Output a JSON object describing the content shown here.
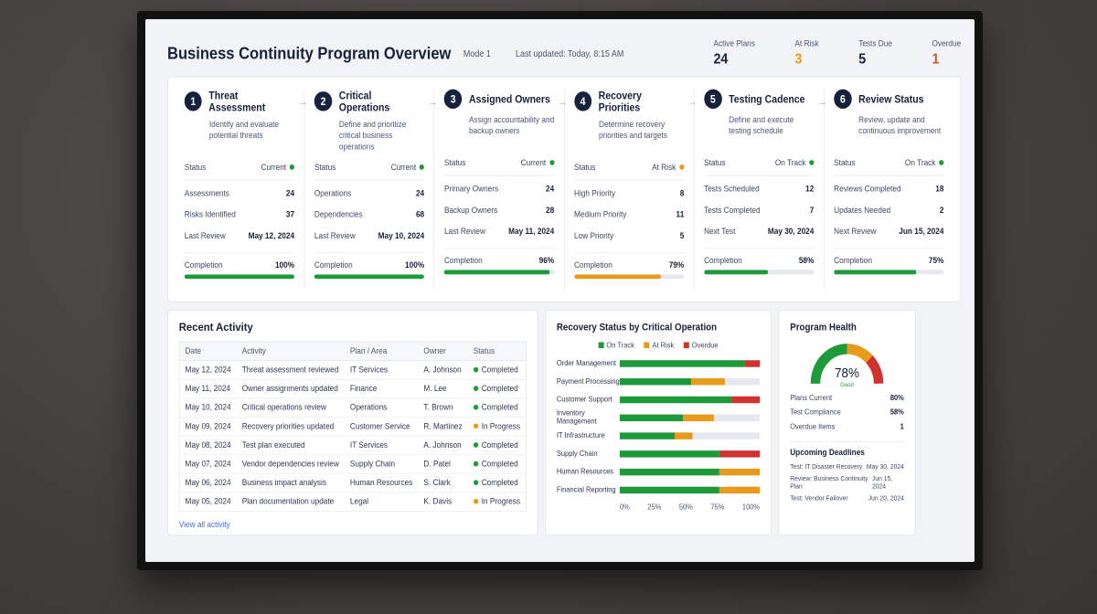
{
  "header": {
    "title": "Business Continuity Program Overview",
    "mode": "Mode 1",
    "updated": "Last updated: Today, 8:15 AM",
    "kpis": [
      {
        "label": "Active Plans",
        "value": "24",
        "tone": "normal"
      },
      {
        "label": "At Risk",
        "value": "3",
        "tone": "warn"
      },
      {
        "label": "Tests Due",
        "value": "5",
        "tone": "normal"
      },
      {
        "label": "Overdue",
        "value": "1",
        "tone": "bad"
      }
    ]
  },
  "steps": [
    {
      "num": "1",
      "title": "Threat Assessment",
      "desc": "Identify and evaluate potential threats",
      "status": "Current",
      "status_tone": "g",
      "rows": [
        {
          "k": "Assessments",
          "v": "24"
        },
        {
          "k": "Risks Identified",
          "v": "37"
        },
        {
          "k": "Last Review",
          "v": "May 12, 2024"
        }
      ],
      "completion_label": "Completion",
      "completion": "100%",
      "completion_pct": 100,
      "bar_tone": "g"
    },
    {
      "num": "2",
      "title": "Critical Operations",
      "desc": "Define and prioritize critical business operations",
      "status": "Current",
      "status_tone": "g",
      "rows": [
        {
          "k": "Operations",
          "v": "24"
        },
        {
          "k": "Dependencies",
          "v": "68"
        },
        {
          "k": "Last Review",
          "v": "May 10, 2024"
        }
      ],
      "completion_label": "Completion",
      "completion": "100%",
      "completion_pct": 100,
      "bar_tone": "g"
    },
    {
      "num": "3",
      "title": "Assigned Owners",
      "desc": "Assign accountability and backup owners",
      "status": "Current",
      "status_tone": "g",
      "rows": [
        {
          "k": "Primary Owners",
          "v": "24"
        },
        {
          "k": "Backup Owners",
          "v": "28"
        },
        {
          "k": "Last Review",
          "v": "May 11, 2024"
        }
      ],
      "completion_label": "Completion",
      "completion": "96%",
      "completion_pct": 96,
      "bar_tone": "g"
    },
    {
      "num": "4",
      "title": "Recovery Priorities",
      "desc": "Determine recovery priorities and targets",
      "status": "At Risk",
      "status_tone": "o",
      "rows": [
        {
          "k": "High Priority",
          "v": "8"
        },
        {
          "k": "Medium Priority",
          "v": "11"
        },
        {
          "k": "Low Priority",
          "v": "5"
        }
      ],
      "completion_label": "Completion",
      "completion": "79%",
      "completion_pct": 79,
      "bar_tone": "o"
    },
    {
      "num": "5",
      "title": "Testing Cadence",
      "desc": "Define and execute testing schedule",
      "status": "On Track",
      "status_tone": "g",
      "rows": [
        {
          "k": "Tests Scheduled",
          "v": "12"
        },
        {
          "k": "Tests Completed",
          "v": "7"
        },
        {
          "k": "Next Test",
          "v": "May 30, 2024"
        }
      ],
      "completion_label": "Completion",
      "completion": "58%",
      "completion_pct": 58,
      "bar_tone": "g"
    },
    {
      "num": "6",
      "title": "Review Status",
      "desc": "Review, update and continuous improvement",
      "status": "On Track",
      "status_tone": "g",
      "rows": [
        {
          "k": "Reviews Completed",
          "v": "18"
        },
        {
          "k": "Updates Needed",
          "v": "2"
        },
        {
          "k": "Next Review",
          "v": "Jun 15, 2024"
        }
      ],
      "completion_label": "Completion",
      "completion": "75%",
      "completion_pct": 75,
      "bar_tone": "g"
    }
  ],
  "status_label": "Status",
  "activity": {
    "title": "Recent Activity",
    "columns": [
      "Date",
      "Activity",
      "Plan / Area",
      "Owner",
      "Status"
    ],
    "rows": [
      {
        "date": "May 12, 2024",
        "activity": "Threat assessment reviewed",
        "area": "IT Services",
        "owner": "A. Johnson",
        "status": "Completed",
        "tone": "g"
      },
      {
        "date": "May 11, 2024",
        "activity": "Owner assignments updated",
        "area": "Finance",
        "owner": "M. Lee",
        "status": "Completed",
        "tone": "g"
      },
      {
        "date": "May 10, 2024",
        "activity": "Critical operations review",
        "area": "Operations",
        "owner": "T. Brown",
        "status": "Completed",
        "tone": "g"
      },
      {
        "date": "May 09, 2024",
        "activity": "Recovery priorities updated",
        "area": "Customer Service",
        "owner": "R. Martinez",
        "status": "In Progress",
        "tone": "o"
      },
      {
        "date": "May 08, 2024",
        "activity": "Test plan executed",
        "area": "IT Services",
        "owner": "A. Johnson",
        "status": "Completed",
        "tone": "g"
      },
      {
        "date": "May 07, 2024",
        "activity": "Vendor dependencies review",
        "area": "Supply Chain",
        "owner": "D. Patel",
        "status": "Completed",
        "tone": "g"
      },
      {
        "date": "May 06, 2024",
        "activity": "Business impact analysis",
        "area": "Human Resources",
        "owner": "S. Clark",
        "status": "Completed",
        "tone": "g"
      },
      {
        "date": "May 05, 2024",
        "activity": "Plan documentation update",
        "area": "Legal",
        "owner": "K. Davis",
        "status": "In Progress",
        "tone": "o"
      }
    ],
    "view_all": "View all activity"
  },
  "recovery": {
    "title": "Recovery Status by Critical Operation",
    "legend": [
      {
        "name": "On Track",
        "color": "#1e9a3b"
      },
      {
        "name": "At Risk",
        "color": "#e89a1a"
      },
      {
        "name": "Overdue",
        "color": "#d03232"
      }
    ],
    "xticks": [
      "0%",
      "25%",
      "50%",
      "75%",
      "100%"
    ]
  },
  "chart_data": {
    "type": "bar",
    "orientation": "horizontal",
    "stacked": true,
    "categories": [
      "Order Management",
      "Payment Processing",
      "Customer Support",
      "Inventory Management",
      "IT Infrastructure",
      "Supply Chain",
      "Human Resources",
      "Financial Reporting"
    ],
    "series": [
      {
        "name": "On Track",
        "values": [
          89,
          51,
          80,
          45,
          39,
          71,
          71,
          71
        ]
      },
      {
        "name": "At Risk",
        "values": [
          0,
          24,
          0,
          22,
          13,
          0,
          29,
          29
        ]
      },
      {
        "name": "Overdue",
        "values": [
          11,
          0,
          20,
          0,
          0,
          29,
          0,
          0
        ]
      }
    ],
    "xlim": [
      0,
      100
    ],
    "xlabel": "",
    "ylabel": "",
    "legend": "top"
  },
  "health": {
    "title": "Program Health",
    "score": "78%",
    "score_pct": 78,
    "score_label": "Good",
    "rows": [
      {
        "k": "Plans Current",
        "v": "80%"
      },
      {
        "k": "Test Compliance",
        "v": "58%"
      },
      {
        "k": "Overdue Items",
        "v": "1"
      }
    ],
    "deadlines_title": "Upcoming Deadlines",
    "deadlines": [
      {
        "k": "Test: IT Disaster Recovery",
        "v": "May 30, 2024"
      },
      {
        "k": "Review: Business Continuity Plan",
        "v": "Jun 15, 2024"
      },
      {
        "k": "Test: Vendor Failover",
        "v": "Jun 20, 2024"
      }
    ]
  }
}
